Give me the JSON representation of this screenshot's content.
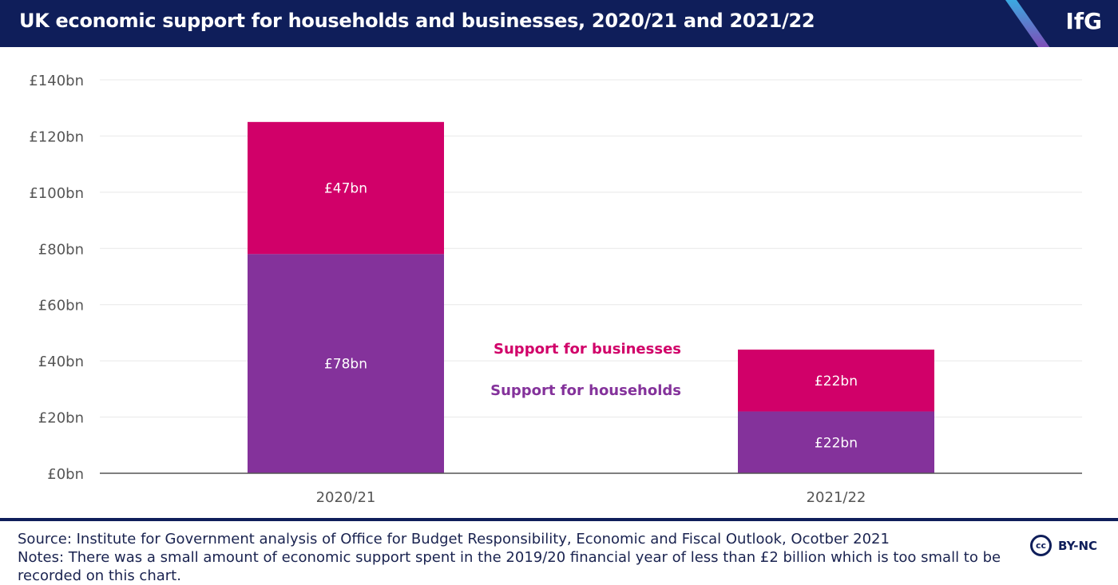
{
  "header": {
    "title": "UK economic support for households and businesses, 2020/21 and 2021/22",
    "logo": "IfG"
  },
  "chart_data": {
    "type": "bar",
    "stacked": true,
    "title": "UK economic support for households and businesses, 2020/21 and 2021/22",
    "categories": [
      "2020/21",
      "2021/22"
    ],
    "series": [
      {
        "name": "Support for households",
        "values": [
          78,
          22
        ],
        "labels": [
          "£78bn",
          "£22bn"
        ],
        "color": "#84329b"
      },
      {
        "name": "Support for businesses",
        "values": [
          47,
          22
        ],
        "labels": [
          "£47bn",
          "£22bn"
        ],
        "color": "#d10069"
      }
    ],
    "ylim": [
      0,
      140
    ],
    "yticks": [
      0,
      20,
      40,
      60,
      80,
      100,
      120,
      140
    ],
    "ytick_labels": [
      "£0bn",
      "£20bn",
      "£40bn",
      "£60bn",
      "£80bn",
      "£100bn",
      "£120bn",
      "£140bn"
    ],
    "grid": true,
    "legend": "center"
  },
  "footer": {
    "source": "Source: Institute for Government analysis of Office for Budget Responsibility, Economic and Fiscal Outlook, Ocotber 2021",
    "notes": "Notes: There was a small amount of economic support spent in the 2019/20 financial year of less than £2 billion which is too small to be recorded on this chart.",
    "license_icon": "cc",
    "license": "BY-NC"
  }
}
